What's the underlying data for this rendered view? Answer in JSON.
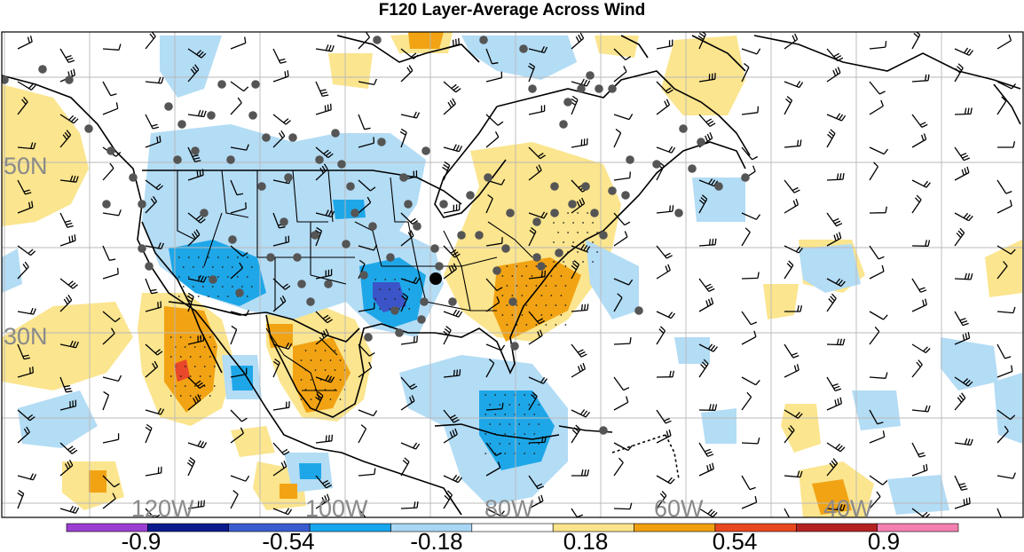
{
  "title": "F120 Layer-Average Across Wind",
  "map": {
    "lat_labels": [
      "50N",
      "30N"
    ],
    "lon_labels": [
      "120W",
      "100W",
      "80W",
      "60W",
      "40W"
    ],
    "gridlines": true,
    "fill_colors": {
      "light_blue": "#b3dcf5",
      "blue": "#1ea7e8",
      "dark_blue": "#3b55c8",
      "light_yellow": "#fbe58e",
      "orange": "#f2a313",
      "red": "#e9482a"
    },
    "station_marker_color": "#555555",
    "highlight_station_color": "#000000"
  },
  "colorbar": {
    "labels": [
      "-0.9",
      "-0.54",
      "-0.18",
      "0.18",
      "0.54",
      "0.9"
    ],
    "colors": [
      "#9c3ed2",
      "#0b1a8c",
      "#3a5ccf",
      "#18a6ee",
      "#a9d6f4",
      "#ffffff",
      "#fbe38a",
      "#f0a00f",
      "#e8481e",
      "#b32222",
      "#f47fb0"
    ]
  }
}
